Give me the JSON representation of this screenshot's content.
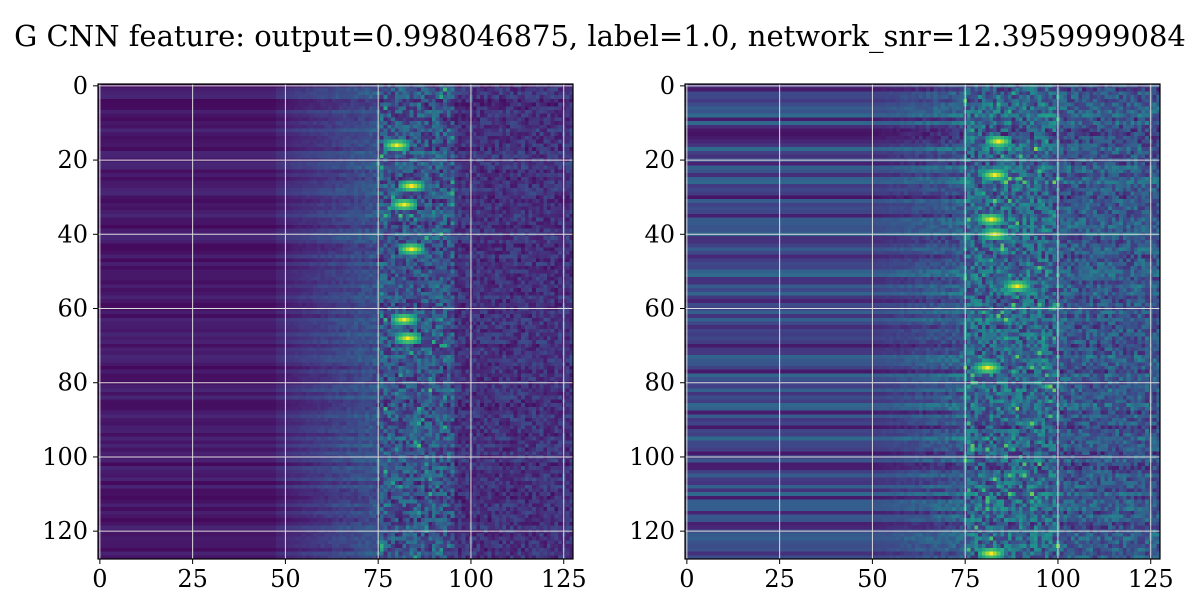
{
  "title": "G CNN feature: output=0.998046875, label=1.0, network_snr=12.3959999084",
  "chart_data": [
    {
      "type": "heatmap",
      "grid": true,
      "xlim": [
        0,
        127
      ],
      "ylim": [
        127,
        0
      ],
      "x_ticks": [
        0,
        25,
        50,
        75,
        100,
        125
      ],
      "y_ticks": [
        0,
        20,
        40,
        60,
        80,
        100,
        120
      ],
      "colormap": "viridis",
      "bright_band_x": [
        75,
        95
      ],
      "hot_spots": [
        {
          "x": 82,
          "y": 62.5
        },
        {
          "x": 83,
          "y": 68
        },
        {
          "x": 84,
          "y": 26.5
        },
        {
          "x": 84,
          "y": 43.5
        },
        {
          "x": 80,
          "y": 15.5
        },
        {
          "x": 82,
          "y": 32
        }
      ]
    },
    {
      "type": "heatmap",
      "grid": true,
      "xlim": [
        0,
        127
      ],
      "ylim": [
        127,
        0
      ],
      "x_ticks": [
        0,
        25,
        50,
        75,
        100,
        125
      ],
      "y_ticks": [
        0,
        20,
        40,
        60,
        80,
        100,
        120
      ],
      "colormap": "viridis",
      "bright_band_x": [
        75,
        100
      ],
      "hot_spots": [
        {
          "x": 83,
          "y": 39.5
        },
        {
          "x": 82,
          "y": 35.5
        },
        {
          "x": 81,
          "y": 76
        },
        {
          "x": 83,
          "y": 24
        },
        {
          "x": 84,
          "y": 15
        },
        {
          "x": 82,
          "y": 126
        },
        {
          "x": 89,
          "y": 54
        }
      ]
    }
  ],
  "colors": {
    "viridis_low": "#440154",
    "viridis_mid": "#21918c",
    "viridis_high": "#fde725",
    "grid": "#dcdcdc",
    "axes": "#000000"
  }
}
